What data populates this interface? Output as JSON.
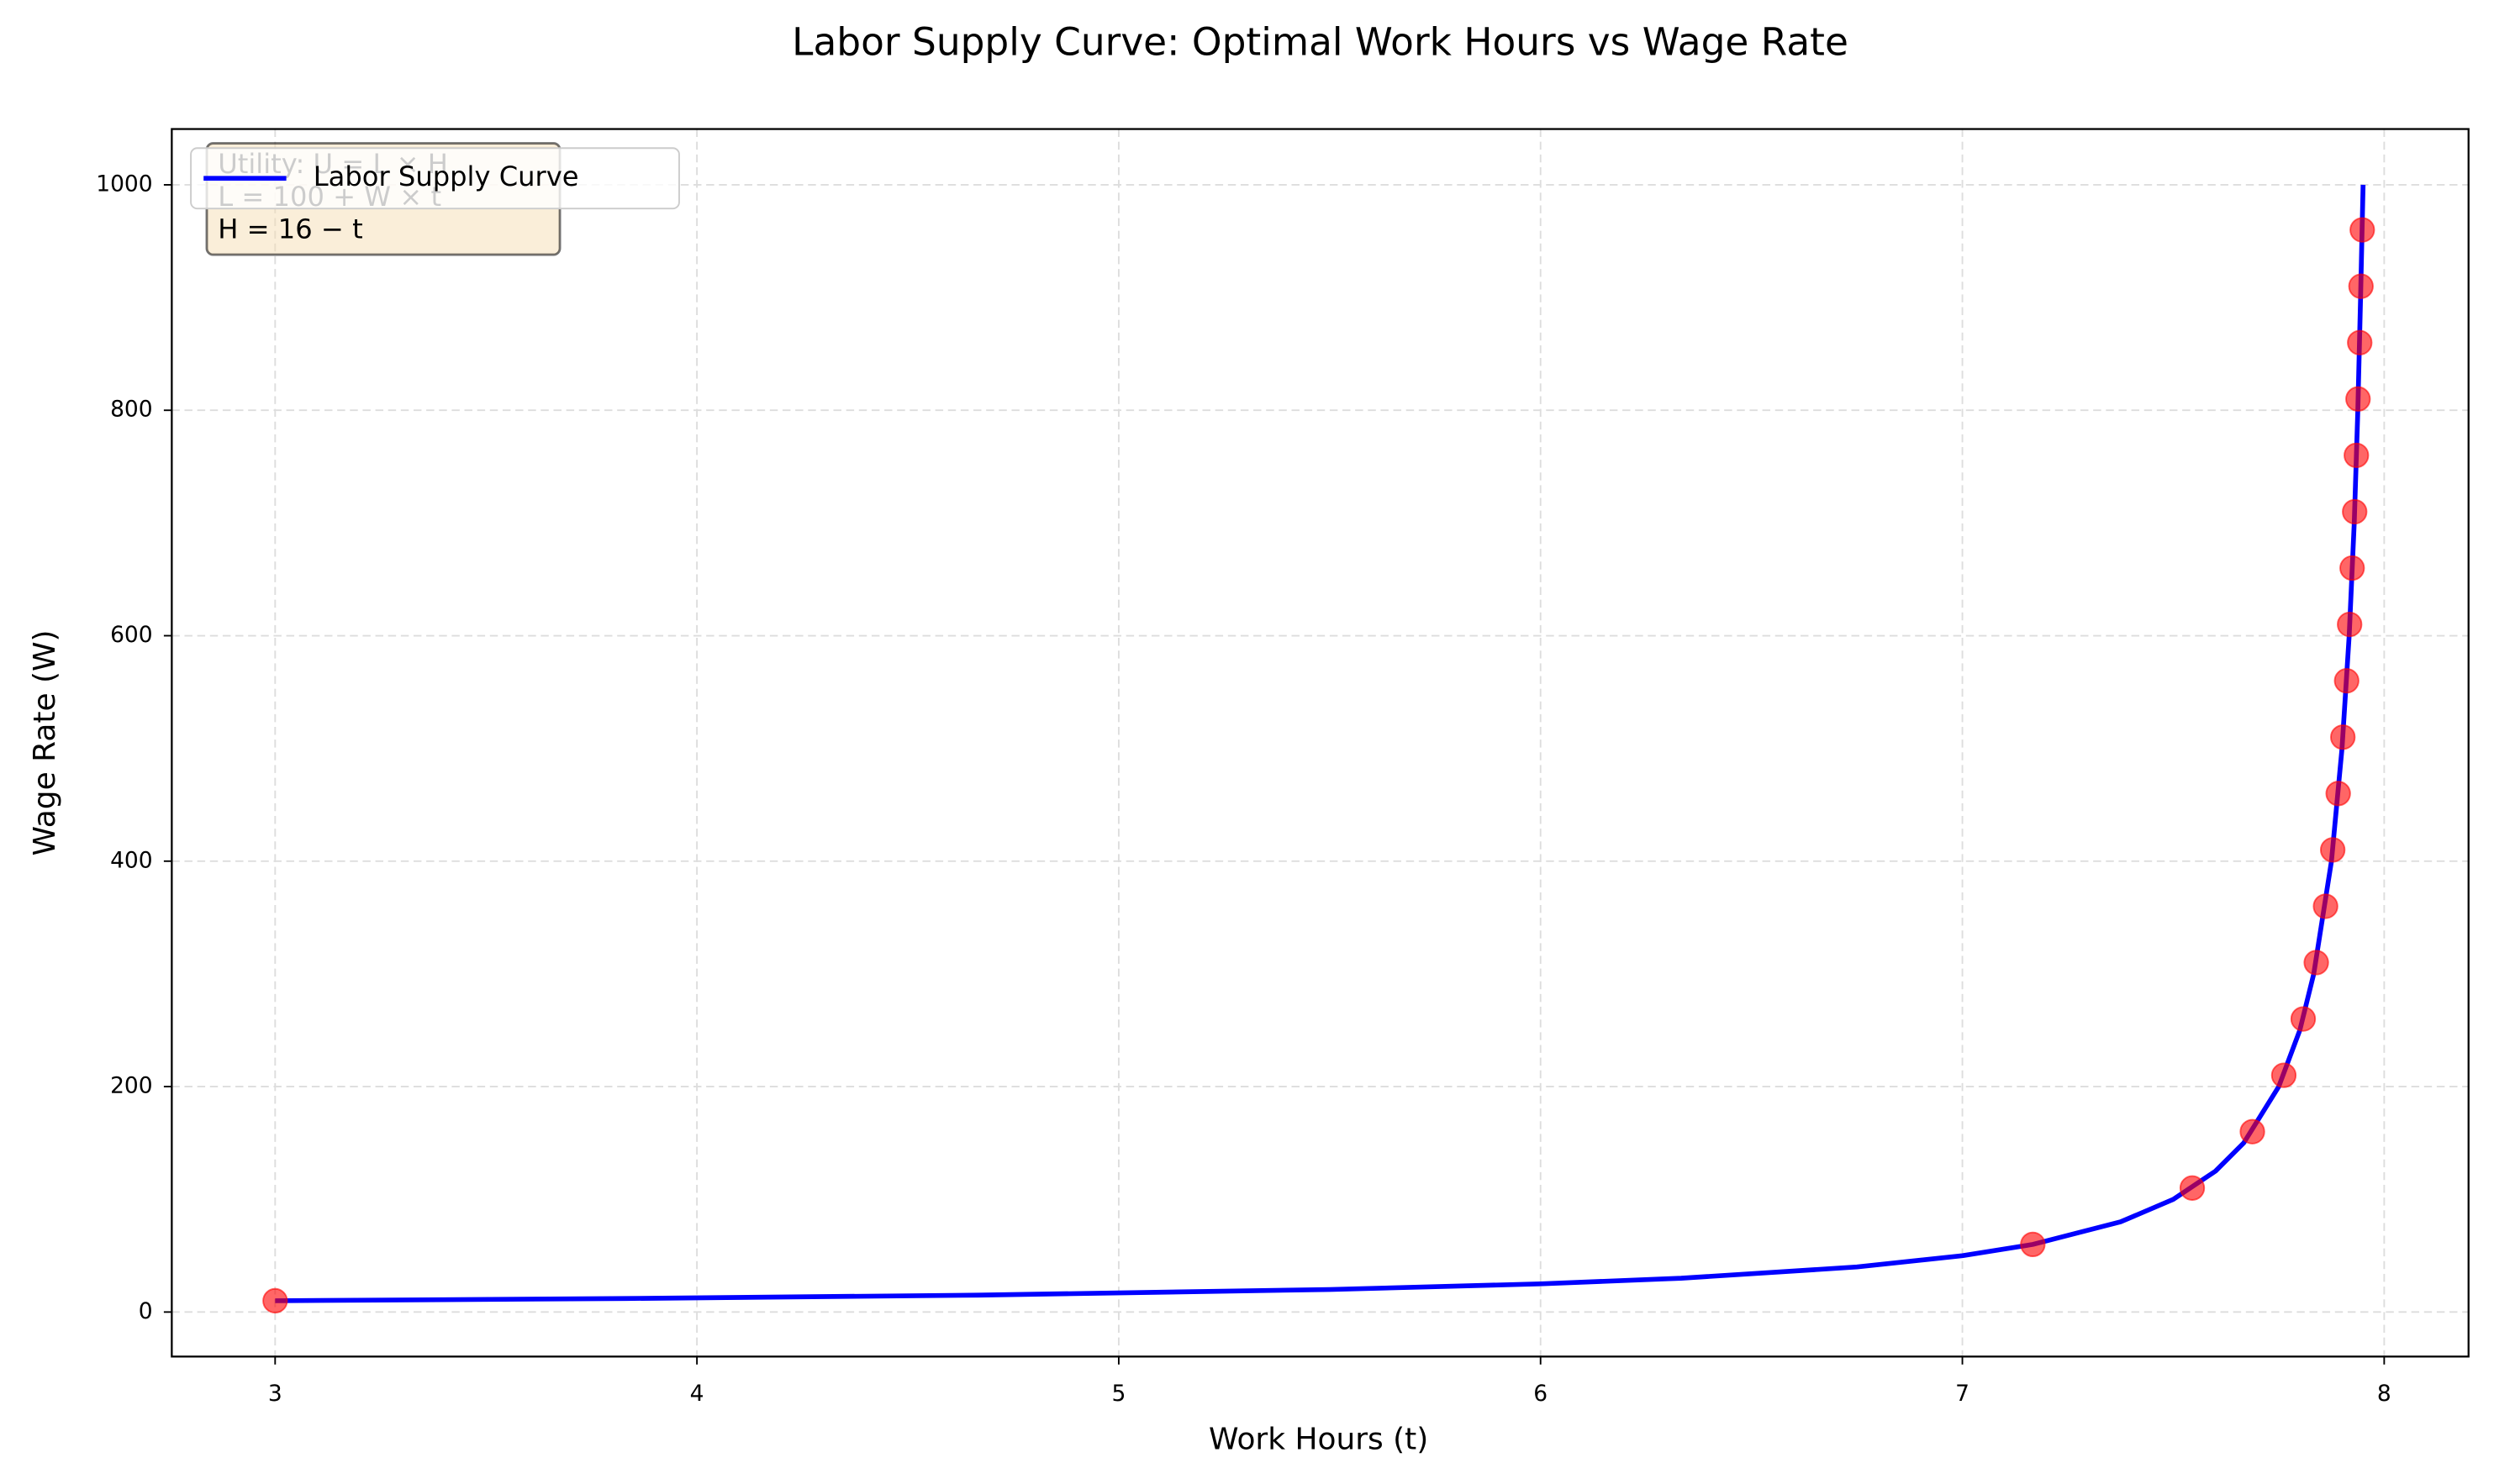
{
  "chart_data": {
    "type": "line",
    "title": "Labor Supply Curve: Optimal Work Hours vs Wage Rate",
    "xlabel": "Work Hours (t)",
    "ylabel": "Wage Rate (W)",
    "xlim": [
      2.755,
      8.2
    ],
    "ylim": [
      -39.5,
      1049.5
    ],
    "xticks": [
      3,
      4,
      5,
      6,
      7,
      8
    ],
    "yticks": [
      0,
      200,
      400,
      600,
      800,
      1000
    ],
    "grid": true,
    "legend": "upper left",
    "annotation": [
      "Utility: U = L × H",
      "L = 100 + W × t",
      "H = 16 − t"
    ],
    "series": [
      {
        "name": "Labor Supply Curve",
        "color": "#0000ff",
        "x": [
          3,
          3.833,
          4.667,
          5.5,
          6,
          6.333,
          6.75,
          7,
          7.167,
          7.375,
          7.5,
          7.6,
          7.667,
          7.75,
          7.8,
          7.833,
          7.875,
          7.9,
          7.917,
          7.929,
          7.9375,
          7.944,
          7.95
        ],
        "values": [
          10,
          12,
          15,
          20,
          25,
          30,
          40,
          50,
          60,
          80,
          100,
          125,
          150,
          200,
          250,
          300,
          400,
          500,
          600,
          700,
          800,
          900,
          1000
        ]
      }
    ],
    "points": {
      "color": "#ff0000",
      "x": [
        3,
        7.167,
        7.545,
        7.6875,
        7.762,
        7.808,
        7.839,
        7.861,
        7.878,
        7.891,
        7.902,
        7.911,
        7.918,
        7.924,
        7.93,
        7.934,
        7.938,
        7.942,
        7.945,
        7.948
      ],
      "values": [
        10,
        60,
        110,
        160,
        210,
        260,
        310,
        360,
        410,
        460,
        510,
        560,
        610,
        660,
        710,
        760,
        810,
        860,
        910,
        960
      ]
    }
  }
}
